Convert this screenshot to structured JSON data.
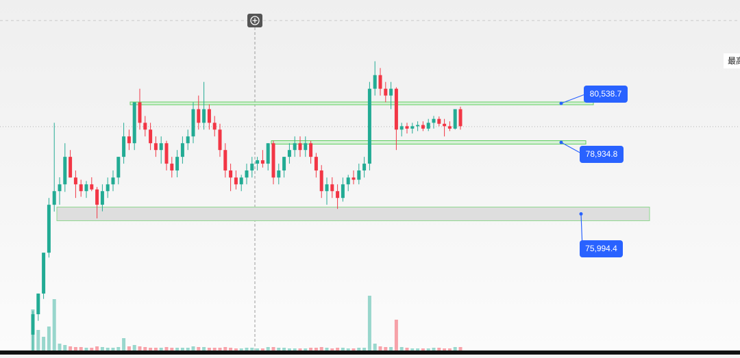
{
  "chart_data": {
    "type": "candlestick",
    "ylim": [
      70211,
      84788
    ],
    "up_color": "#22ab94",
    "down_color": "#f23645",
    "corner_text": "最高",
    "ohlc": [
      [
        71030,
        72000,
        70190,
        71870
      ],
      [
        71870,
        72720,
        71600,
        72720
      ],
      [
        72720,
        74400,
        72500,
        74400
      ],
      [
        74400,
        76650,
        74200,
        76370
      ],
      [
        76370,
        79740,
        76090,
        76930
      ],
      [
        76930,
        77500,
        76370,
        77210
      ],
      [
        77210,
        78900,
        76900,
        78340
      ],
      [
        78340,
        78620,
        77490,
        77490
      ],
      [
        77490,
        77780,
        76650,
        77210
      ],
      [
        77210,
        77400,
        76700,
        76930
      ],
      [
        76930,
        77350,
        76650,
        77210
      ],
      [
        77210,
        77500,
        76930,
        77000
      ],
      [
        77000,
        77100,
        75810,
        76370
      ],
      [
        76370,
        77210,
        76100,
        76930
      ],
      [
        76930,
        77490,
        76650,
        77210
      ],
      [
        77210,
        77780,
        76930,
        77490
      ],
      [
        77490,
        78340,
        77210,
        78340
      ],
      [
        78340,
        79740,
        78060,
        79180
      ],
      [
        79180,
        79460,
        78620,
        78900
      ],
      [
        78900,
        80580,
        78620,
        80580
      ],
      [
        80580,
        81140,
        79460,
        79740
      ],
      [
        79740,
        80020,
        79180,
        79460
      ],
      [
        79460,
        79740,
        78620,
        78900
      ],
      [
        78900,
        79180,
        78340,
        78620
      ],
      [
        78620,
        79180,
        78060,
        78900
      ],
      [
        78900,
        79000,
        77780,
        78060
      ],
      [
        78060,
        78340,
        77490,
        77780
      ],
      [
        77780,
        78620,
        77500,
        78340
      ],
      [
        78340,
        79180,
        78060,
        78900
      ],
      [
        78900,
        79460,
        78620,
        79180
      ],
      [
        79180,
        80580,
        78900,
        80300
      ],
      [
        80300,
        80860,
        79460,
        79740
      ],
      [
        79740,
        81420,
        79460,
        80300
      ],
      [
        80300,
        80500,
        79460,
        79740
      ],
      [
        79740,
        80020,
        79180,
        79460
      ],
      [
        79460,
        79700,
        78340,
        78620
      ],
      [
        78620,
        78900,
        77490,
        77780
      ],
      [
        77780,
        78060,
        76930,
        77490
      ],
      [
        77490,
        77780,
        77000,
        77210
      ],
      [
        77210,
        77600,
        76930,
        77490
      ],
      [
        77490,
        78060,
        77210,
        77780
      ],
      [
        77780,
        78340,
        77490,
        78060
      ],
      [
        78060,
        78340,
        77780,
        78200
      ],
      [
        78200,
        78620,
        77900,
        78060
      ],
      [
        78060,
        78900,
        77780,
        78900
      ],
      [
        78900,
        79000,
        77210,
        77490
      ],
      [
        77490,
        78060,
        77210,
        77780
      ],
      [
        77780,
        78340,
        77490,
        78340
      ],
      [
        78340,
        78900,
        78060,
        78620
      ],
      [
        78620,
        79180,
        78340,
        78900
      ],
      [
        78900,
        79180,
        78340,
        78620
      ],
      [
        78620,
        79180,
        78340,
        78900
      ],
      [
        78900,
        79000,
        78060,
        78340
      ],
      [
        78340,
        78500,
        77490,
        77780
      ],
      [
        77780,
        78000,
        76650,
        76930
      ],
      [
        76930,
        77490,
        76370,
        77210
      ],
      [
        77210,
        77500,
        76650,
        76930
      ],
      [
        76930,
        77210,
        76200,
        76650
      ],
      [
        76650,
        77490,
        76500,
        77210
      ],
      [
        77210,
        77600,
        76930,
        77490
      ],
      [
        77490,
        77780,
        77210,
        77400
      ],
      [
        77400,
        78060,
        77210,
        77780
      ],
      [
        77780,
        78340,
        77490,
        78060
      ],
      [
        78060,
        81420,
        77780,
        81140
      ],
      [
        81140,
        82270,
        80860,
        81700
      ],
      [
        81700,
        81990,
        80860,
        81140
      ],
      [
        81140,
        81420,
        80580,
        80860
      ],
      [
        80860,
        81420,
        80300,
        81140
      ],
      [
        81140,
        81200,
        78620,
        79460
      ],
      [
        79460,
        79740,
        79180,
        79600
      ],
      [
        79600,
        79740,
        79300,
        79500
      ],
      [
        79500,
        79740,
        79300,
        79600
      ],
      [
        79600,
        79800,
        79400,
        79650
      ],
      [
        79650,
        79800,
        79400,
        79500
      ],
      [
        79500,
        79900,
        79400,
        79740
      ],
      [
        79740,
        80020,
        79500,
        79900
      ],
      [
        79900,
        80000,
        79600,
        79700
      ],
      [
        79700,
        79900,
        79180,
        79600
      ],
      [
        79600,
        79800,
        79400,
        79500
      ],
      [
        79500,
        80300,
        79460,
        80300
      ],
      [
        80300,
        80400,
        79460,
        79600
      ]
    ],
    "volume_ylim": [
      0,
      100
    ],
    "volume": [
      60,
      30,
      20,
      35,
      75,
      10,
      8,
      6,
      5,
      5,
      4,
      4,
      6,
      5,
      4,
      4,
      5,
      18,
      6,
      8,
      6,
      5,
      4,
      4,
      4,
      5,
      4,
      4,
      4,
      4,
      6,
      5,
      5,
      4,
      4,
      4,
      5,
      4,
      3,
      3,
      4,
      4,
      3,
      3,
      5,
      5,
      4,
      4,
      3,
      3,
      3,
      3,
      4,
      4,
      5,
      4,
      3,
      4,
      4,
      3,
      3,
      4,
      4,
      80,
      10,
      6,
      5,
      5,
      45,
      5,
      4,
      3,
      3,
      3,
      3,
      4,
      4,
      3,
      3,
      5,
      5
    ],
    "levels": [
      {
        "value": 80538.7,
        "label": "80,538.7"
      },
      {
        "value": 78934.8,
        "label": "78,934.8"
      },
      {
        "value": 75994.4,
        "label": "75,994.4"
      }
    ]
  }
}
